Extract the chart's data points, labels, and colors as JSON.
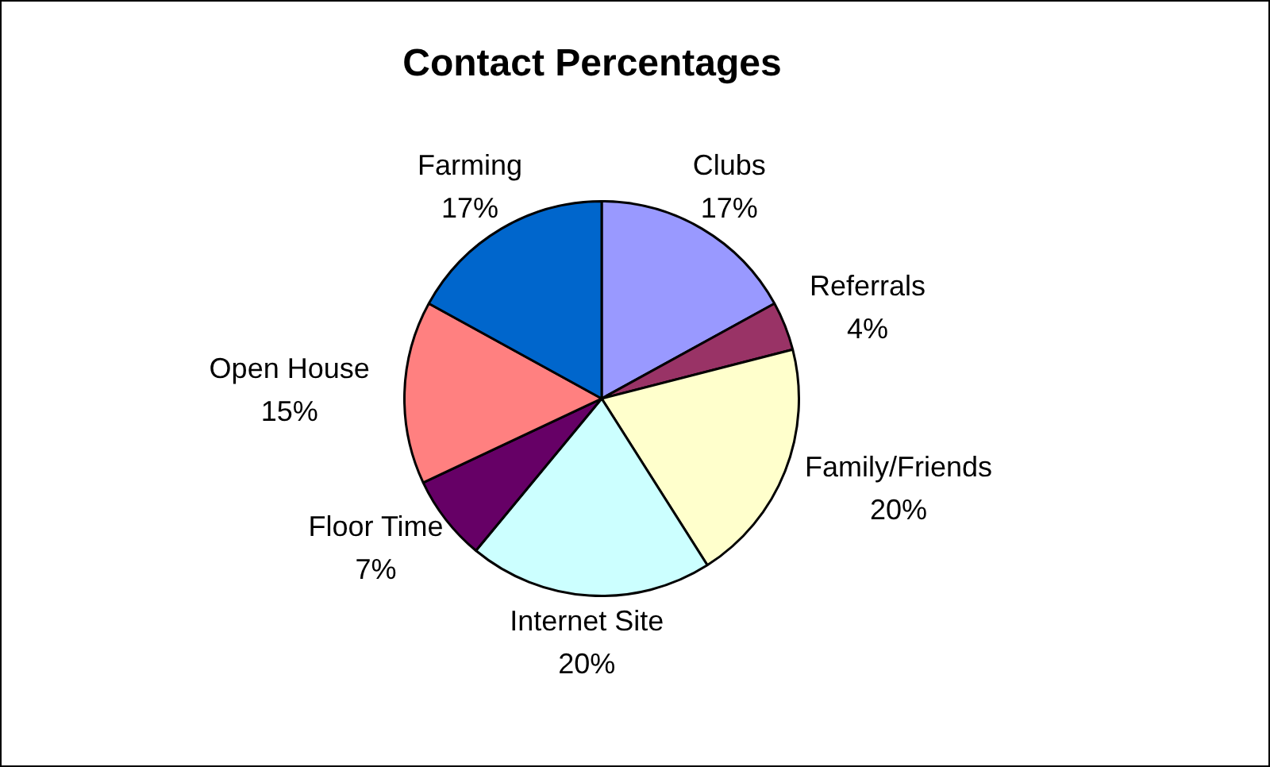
{
  "chart_data": {
    "type": "pie",
    "title": "Contact Percentages",
    "categories": [
      "Clubs",
      "Referrals",
      "Family/Friends",
      "Internet Site",
      "Floor Time",
      "Open House",
      "Farming"
    ],
    "values": [
      17,
      4,
      20,
      20,
      7,
      15,
      17
    ],
    "colors": [
      "#9999ff",
      "#993366",
      "#ffffcc",
      "#ccffff",
      "#660066",
      "#ff8080",
      "#0066cc"
    ],
    "value_labels": [
      "17%",
      "4%",
      "20%",
      "20%",
      "7%",
      "15%",
      "17%"
    ],
    "legend": false
  }
}
